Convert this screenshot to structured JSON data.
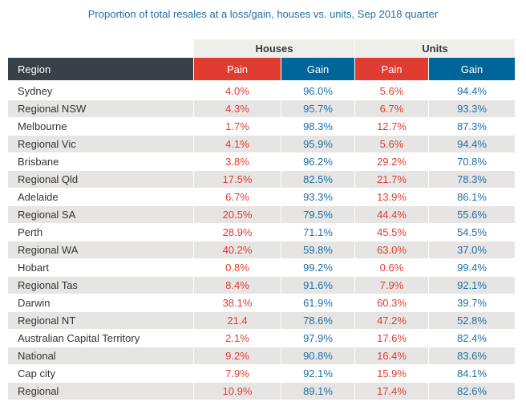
{
  "title": "Proportion of total resales at a loss/gain, houses vs. units, Sep 2018 quarter",
  "colors": {
    "pain": "#e03c31",
    "gain": "#006699",
    "region_header": "#394048",
    "group_header": "#efeeea",
    "stripe": "#e6e5e3",
    "title": "#1f6fa6"
  },
  "groups": {
    "houses": "Houses",
    "units": "Units"
  },
  "headers": {
    "region": "Region",
    "houses_pain": "Pain",
    "houses_gain": "Gain",
    "units_pain": "Pain",
    "units_gain": "Gain"
  },
  "rows": [
    {
      "region": "Sydney",
      "houses_pain": "4.0%",
      "houses_gain": "96.0%",
      "units_pain": "5.6%",
      "units_gain": "94.4%"
    },
    {
      "region": "Regional NSW",
      "houses_pain": "4.3%",
      "houses_gain": "95.7%",
      "units_pain": "6.7%",
      "units_gain": "93.3%"
    },
    {
      "region": "Melbourne",
      "houses_pain": "1.7%",
      "houses_gain": "98.3%",
      "units_pain": "12.7%",
      "units_gain": "87.3%"
    },
    {
      "region": "Regional Vic",
      "houses_pain": "4.1%",
      "houses_gain": "95.9%",
      "units_pain": "5.6%",
      "units_gain": "94.4%"
    },
    {
      "region": "Brisbane",
      "houses_pain": "3.8%",
      "houses_gain": "96.2%",
      "units_pain": "29.2%",
      "units_gain": "70.8%"
    },
    {
      "region": "Regional Qld",
      "houses_pain": "17.5%",
      "houses_gain": "82.5%",
      "units_pain": "21.7%",
      "units_gain": "78.3%"
    },
    {
      "region": "Adelaide",
      "houses_pain": "6.7%",
      "houses_gain": "93.3%",
      "units_pain": "13.9%",
      "units_gain": "86.1%"
    },
    {
      "region": "Regional SA",
      "houses_pain": "20.5%",
      "houses_gain": "79.5%",
      "units_pain": "44.4%",
      "units_gain": "55.6%"
    },
    {
      "region": "Perth",
      "houses_pain": "28.9%",
      "houses_gain": "71.1%",
      "units_pain": "45.5%",
      "units_gain": "54.5%"
    },
    {
      "region": "Regional WA",
      "houses_pain": "40.2%",
      "houses_gain": "59.8%",
      "units_pain": "63.0%",
      "units_gain": "37.0%"
    },
    {
      "region": "Hobart",
      "houses_pain": "0.8%",
      "houses_gain": "99.2%",
      "units_pain": "0.6%",
      "units_gain": "99.4%"
    },
    {
      "region": "Regional Tas",
      "houses_pain": "8.4%",
      "houses_gain": "91.6%",
      "units_pain": "7.9%",
      "units_gain": "92.1%"
    },
    {
      "region": "Darwin",
      "houses_pain": "38.1%",
      "houses_gain": "61.9%",
      "units_pain": "60.3%",
      "units_gain": "39.7%"
    },
    {
      "region": "Regional NT",
      "houses_pain": "21.4",
      "houses_gain": "78.6%",
      "units_pain": "47.2%",
      "units_gain": "52.8%"
    },
    {
      "region": "Australian Capital Territory",
      "houses_pain": "2.1%",
      "houses_gain": "97.9%",
      "units_pain": "17.6%",
      "units_gain": "82.4%"
    },
    {
      "region": "National",
      "houses_pain": "9.2%",
      "houses_gain": "90.8%",
      "units_pain": "16.4%",
      "units_gain": "83.6%"
    },
    {
      "region": "Cap city",
      "houses_pain": "7.9%",
      "houses_gain": "92.1%",
      "units_pain": "15.9%",
      "units_gain": "84.1%"
    },
    {
      "region": "Regional",
      "houses_pain": "10.9%",
      "houses_gain": "89.1%",
      "units_pain": "17.4%",
      "units_gain": "82.6%"
    }
  ]
}
